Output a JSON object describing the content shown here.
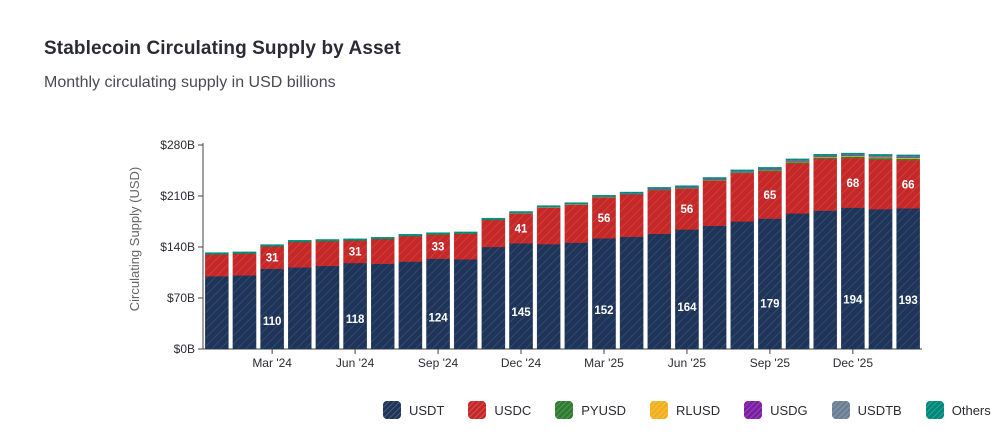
{
  "title": "Stablecoin Circulating Supply by Asset",
  "subtitle": "Monthly circulating supply in USD billions",
  "chart_data": {
    "type": "bar",
    "stacked": true,
    "ylabel": "Circulating Supply (USD)",
    "ylim": [
      0,
      280
    ],
    "yticks": [
      "$0B",
      "$70B",
      "$140B",
      "$210B",
      "$280B"
    ],
    "ytick_values": [
      0,
      70,
      140,
      210,
      280
    ],
    "xtick_labels": [
      {
        "index": 2,
        "label": "Mar '24"
      },
      {
        "index": 5,
        "label": "Jun '24"
      },
      {
        "index": 8,
        "label": "Sep '24"
      },
      {
        "index": 11,
        "label": "Dec '24"
      },
      {
        "index": 14,
        "label": "Mar '25"
      },
      {
        "index": 17,
        "label": "Jun '25"
      },
      {
        "index": 20,
        "label": "Sep '25"
      },
      {
        "index": 23,
        "label": "Dec '25"
      }
    ],
    "categories": [
      "Jan '24",
      "Feb '24",
      "Mar '24",
      "Apr '24",
      "May '24",
      "Jun '24",
      "Jul '24",
      "Aug '24",
      "Sep '24",
      "Oct '24",
      "Nov '24",
      "Dec '24",
      "Jan '25",
      "Feb '25",
      "Mar '25",
      "Apr '25",
      "May '25",
      "Jun '25",
      "Jul '25",
      "Aug '25",
      "Sep '25",
      "Oct '25",
      "Nov '25",
      "Dec '25",
      "Jan '26",
      "Feb '26"
    ],
    "series": [
      {
        "name": "USDT",
        "color": "#1e3559",
        "values": [
          100,
          101,
          110,
          112,
          114,
          118,
          117,
          120,
          124,
          123,
          140,
          145,
          144,
          146,
          152,
          154,
          158,
          164,
          169,
          175,
          179,
          186,
          190,
          194,
          192,
          193
        ]
      },
      {
        "name": "USDC",
        "color": "#c62828",
        "values": [
          30,
          30,
          31,
          35,
          34,
          31,
          34,
          35,
          33,
          35,
          37,
          41,
          50,
          52,
          56,
          58,
          60,
          56,
          62,
          66,
          65,
          69,
          71,
          68,
          68,
          66
        ]
      },
      {
        "name": "PYUSD",
        "color": "#2e7d32",
        "values": [
          0.4,
          0.4,
          0.4,
          0.4,
          0.4,
          0.4,
          0.5,
          0.6,
          0.8,
          0.8,
          0.7,
          0.6,
          0.6,
          0.6,
          0.6,
          0.7,
          0.8,
          0.9,
          0.9,
          1.0,
          1.2,
          1.5,
          1.8,
          2.0,
          2.1,
          2.2
        ]
      },
      {
        "name": "RLUSD",
        "color": "#f2b01e",
        "values": [
          0,
          0,
          0,
          0,
          0,
          0,
          0,
          0,
          0,
          0,
          0,
          0.1,
          0.1,
          0.1,
          0.2,
          0.2,
          0.3,
          0.4,
          0.5,
          0.6,
          0.7,
          0.8,
          0.9,
          1.0,
          1.1,
          1.2
        ]
      },
      {
        "name": "USDG",
        "color": "#7b1fa2",
        "values": [
          0,
          0,
          0,
          0,
          0,
          0,
          0,
          0,
          0,
          0,
          0,
          0,
          0,
          0,
          0,
          0.1,
          0.2,
          0.3,
          0.3,
          0.4,
          0.5,
          0.6,
          0.7,
          0.8,
          0.8,
          0.9
        ]
      },
      {
        "name": "USDTB",
        "color": "#6b7f95",
        "values": [
          0,
          0,
          0,
          0,
          0,
          0,
          0,
          0,
          0,
          0,
          0,
          0.1,
          0.2,
          0.3,
          0.4,
          0.5,
          0.6,
          0.7,
          0.8,
          0.9,
          1.0,
          1.1,
          1.1,
          1.2,
          1.2,
          1.2
        ]
      },
      {
        "name": "Others",
        "color": "#00897b",
        "values": [
          2,
          2,
          2,
          2,
          2,
          2,
          2,
          2,
          2,
          2,
          2,
          2,
          2,
          2,
          2,
          2,
          2,
          2,
          2,
          2,
          2,
          2,
          2,
          2,
          2,
          2
        ]
      }
    ],
    "data_labels": [
      {
        "index": 2,
        "series": "USDT",
        "text": "110"
      },
      {
        "index": 2,
        "series": "USDC",
        "text": "31"
      },
      {
        "index": 5,
        "series": "USDT",
        "text": "118"
      },
      {
        "index": 5,
        "series": "USDC",
        "text": "31"
      },
      {
        "index": 8,
        "series": "USDT",
        "text": "124"
      },
      {
        "index": 8,
        "series": "USDC",
        "text": "33"
      },
      {
        "index": 11,
        "series": "USDT",
        "text": "145"
      },
      {
        "index": 11,
        "series": "USDC",
        "text": "41"
      },
      {
        "index": 14,
        "series": "USDT",
        "text": "152"
      },
      {
        "index": 14,
        "series": "USDC",
        "text": "56"
      },
      {
        "index": 17,
        "series": "USDT",
        "text": "164"
      },
      {
        "index": 17,
        "series": "USDC",
        "text": "56"
      },
      {
        "index": 20,
        "series": "USDT",
        "text": "179"
      },
      {
        "index": 20,
        "series": "USDC",
        "text": "65"
      },
      {
        "index": 23,
        "series": "USDT",
        "text": "194"
      },
      {
        "index": 23,
        "series": "USDC",
        "text": "68"
      },
      {
        "index": 25,
        "series": "USDT",
        "text": "193"
      },
      {
        "index": 25,
        "series": "USDC",
        "text": "66"
      }
    ],
    "legend": "bottom-right",
    "grid": false
  }
}
